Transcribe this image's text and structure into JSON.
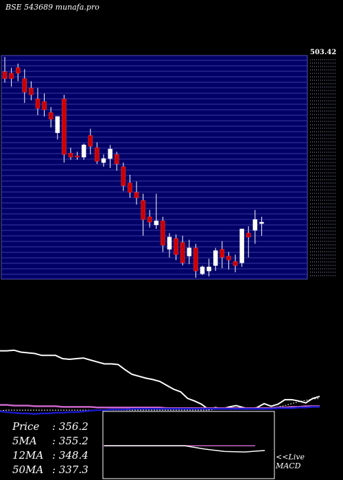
{
  "title": "BSE 543689 munafa.pro",
  "stats": [
    {
      "label": "Price",
      "value": ": 356.2"
    },
    {
      "label": "5MA",
      "value": ": 355.2"
    },
    {
      "label": "12MA",
      "value": ": 348.4"
    },
    {
      "label": "50MA",
      "value": ": 337.3"
    }
  ],
  "live_label": "<<Live",
  "macd_label": "MACD",
  "colors": {
    "background": "#000000",
    "panel": "#000066",
    "grid": "#3a3aa6",
    "up": "#ffffff",
    "down": "#cc0000",
    "ma_line": "#ffffff",
    "ma_purple": "#cc66cc",
    "ma_blue": "#1a1acc"
  },
  "chart_data": {
    "type": "candlestick",
    "title": "BSE 543689 munafa.pro",
    "price_axis_label": "503.42",
    "ylim": [
      340,
      505
    ],
    "candles": [
      {
        "o": 493,
        "h": 504,
        "l": 485,
        "c": 488
      },
      {
        "o": 492,
        "h": 496,
        "l": 482,
        "c": 488
      },
      {
        "o": 496,
        "h": 499,
        "l": 486,
        "c": 492
      },
      {
        "o": 488,
        "h": 495,
        "l": 470,
        "c": 478
      },
      {
        "o": 481,
        "h": 486,
        "l": 472,
        "c": 476
      },
      {
        "o": 473,
        "h": 481,
        "l": 461,
        "c": 466
      },
      {
        "o": 471,
        "h": 477,
        "l": 460,
        "c": 465
      },
      {
        "o": 463,
        "h": 467,
        "l": 452,
        "c": 458
      },
      {
        "o": 448,
        "h": 460,
        "l": 443,
        "c": 460
      },
      {
        "o": 473,
        "h": 476,
        "l": 426,
        "c": 432
      },
      {
        "o": 433,
        "h": 437,
        "l": 428,
        "c": 430
      },
      {
        "o": 431,
        "h": 434,
        "l": 428,
        "c": 430
      },
      {
        "o": 430,
        "h": 440,
        "l": 428,
        "c": 439
      },
      {
        "o": 446,
        "h": 451,
        "l": 432,
        "c": 438
      },
      {
        "o": 437,
        "h": 441,
        "l": 425,
        "c": 427
      },
      {
        "o": 426,
        "h": 432,
        "l": 423,
        "c": 429
      },
      {
        "o": 429,
        "h": 439,
        "l": 422,
        "c": 436
      },
      {
        "o": 432,
        "h": 434,
        "l": 420,
        "c": 425
      },
      {
        "o": 423,
        "h": 426,
        "l": 405,
        "c": 409
      },
      {
        "o": 411,
        "h": 417,
        "l": 400,
        "c": 404
      },
      {
        "o": 404,
        "h": 412,
        "l": 395,
        "c": 400
      },
      {
        "o": 398,
        "h": 403,
        "l": 372,
        "c": 384
      },
      {
        "o": 386,
        "h": 391,
        "l": 378,
        "c": 382
      },
      {
        "o": 380,
        "h": 403,
        "l": 377,
        "c": 383
      },
      {
        "o": 383,
        "h": 386,
        "l": 360,
        "c": 365
      },
      {
        "o": 362,
        "h": 374,
        "l": 356,
        "c": 371
      },
      {
        "o": 370,
        "h": 373,
        "l": 354,
        "c": 358
      },
      {
        "o": 367,
        "h": 372,
        "l": 350,
        "c": 352
      },
      {
        "o": 357,
        "h": 369,
        "l": 351,
        "c": 363
      },
      {
        "o": 363,
        "h": 366,
        "l": 341,
        "c": 346
      },
      {
        "o": 344,
        "h": 350,
        "l": 343,
        "c": 349
      },
      {
        "o": 346,
        "h": 355,
        "l": 342,
        "c": 349
      },
      {
        "o": 350,
        "h": 363,
        "l": 346,
        "c": 361
      },
      {
        "o": 362,
        "h": 368,
        "l": 348,
        "c": 356
      },
      {
        "o": 357,
        "h": 360,
        "l": 347,
        "c": 354
      },
      {
        "o": 353,
        "h": 358,
        "l": 345,
        "c": 350
      },
      {
        "o": 352,
        "h": 377,
        "l": 349,
        "c": 377
      },
      {
        "o": 374,
        "h": 379,
        "l": 356,
        "c": 371
      },
      {
        "o": 376,
        "h": 391,
        "l": 366,
        "c": 384
      },
      {
        "o": 381,
        "h": 386,
        "l": 372,
        "c": 382
      }
    ],
    "ma_series": [
      {
        "name": "Price",
        "values": [
          0.93,
          0.93,
          0.94,
          0.91,
          0.9,
          0.89,
          0.86,
          0.86,
          0.86,
          0.81,
          0.8,
          0.81,
          0.82,
          0.79,
          0.76,
          0.73,
          0.73,
          0.72,
          0.64,
          0.57,
          0.54,
          0.51,
          0.49,
          0.46,
          0.4,
          0.34,
          0.3,
          0.2,
          0.16,
          0.11,
          0.03,
          0.06,
          0.04,
          0.07,
          0.09,
          0.06,
          0.04,
          0.06,
          0.12,
          0.08,
          0.11,
          0.18,
          0.18,
          0.16,
          0.13,
          0.2,
          0.23
        ]
      },
      {
        "name": "5MA",
        "values": [
          0.01,
          0.02,
          0.02,
          0.02,
          0.02,
          0.02,
          0.02,
          0.02,
          0.02,
          0.02,
          0.02,
          0.02,
          0.02,
          0.02,
          0.02,
          0.02,
          0.02,
          0.02,
          0.02,
          0.02,
          0.02,
          0.02,
          0.02,
          0.02,
          0.02,
          0.02,
          0.02,
          0.02,
          0.02,
          0.02,
          0.02,
          0.03,
          0.03,
          0.03,
          0.03,
          0.03,
          0.03,
          0.03,
          0.03,
          0.05,
          0.07,
          0.09,
          0.12,
          0.15,
          0.17,
          0.19,
          0.2
        ]
      },
      {
        "name": "12MA",
        "values": [
          0.1,
          0.1,
          0.09,
          0.09,
          0.09,
          0.08,
          0.08,
          0.08,
          0.08,
          0.07,
          0.07,
          0.07,
          0.07,
          0.07,
          0.06,
          0.06,
          0.06,
          0.06,
          0.06,
          0.06,
          0.06,
          0.06,
          0.06,
          0.06,
          0.05,
          0.05,
          0.05,
          0.05,
          0.05,
          0.05,
          0.05,
          0.05,
          0.05,
          0.05,
          0.05,
          0.05,
          0.05,
          0.05,
          0.05,
          0.05,
          0.06,
          0.06,
          0.07,
          0.07,
          0.08,
          0.08,
          0.08
        ]
      },
      {
        "name": "50MA",
        "values": [
          0.0,
          -0.01,
          -0.02,
          -0.03,
          -0.03,
          -0.04,
          -0.03,
          -0.03,
          -0.02,
          -0.02,
          -0.01,
          -0.01,
          0.0,
          0.01,
          0.02,
          0.02,
          0.03,
          0.03,
          0.03,
          0.04,
          0.04,
          0.04,
          0.04,
          0.04,
          0.04,
          0.04,
          0.04,
          0.04,
          0.04,
          0.04,
          0.04,
          0.04,
          0.04,
          0.04,
          0.04,
          0.04,
          0.04,
          0.04,
          0.04,
          0.04,
          0.05,
          0.05,
          0.05,
          0.06,
          0.06,
          0.07,
          0.07
        ]
      }
    ],
    "macd": {
      "values": [
        0.0,
        0.0,
        0.0,
        0.0,
        0.0,
        -0.07,
        -0.12,
        -0.13,
        -0.1
      ]
    }
  }
}
